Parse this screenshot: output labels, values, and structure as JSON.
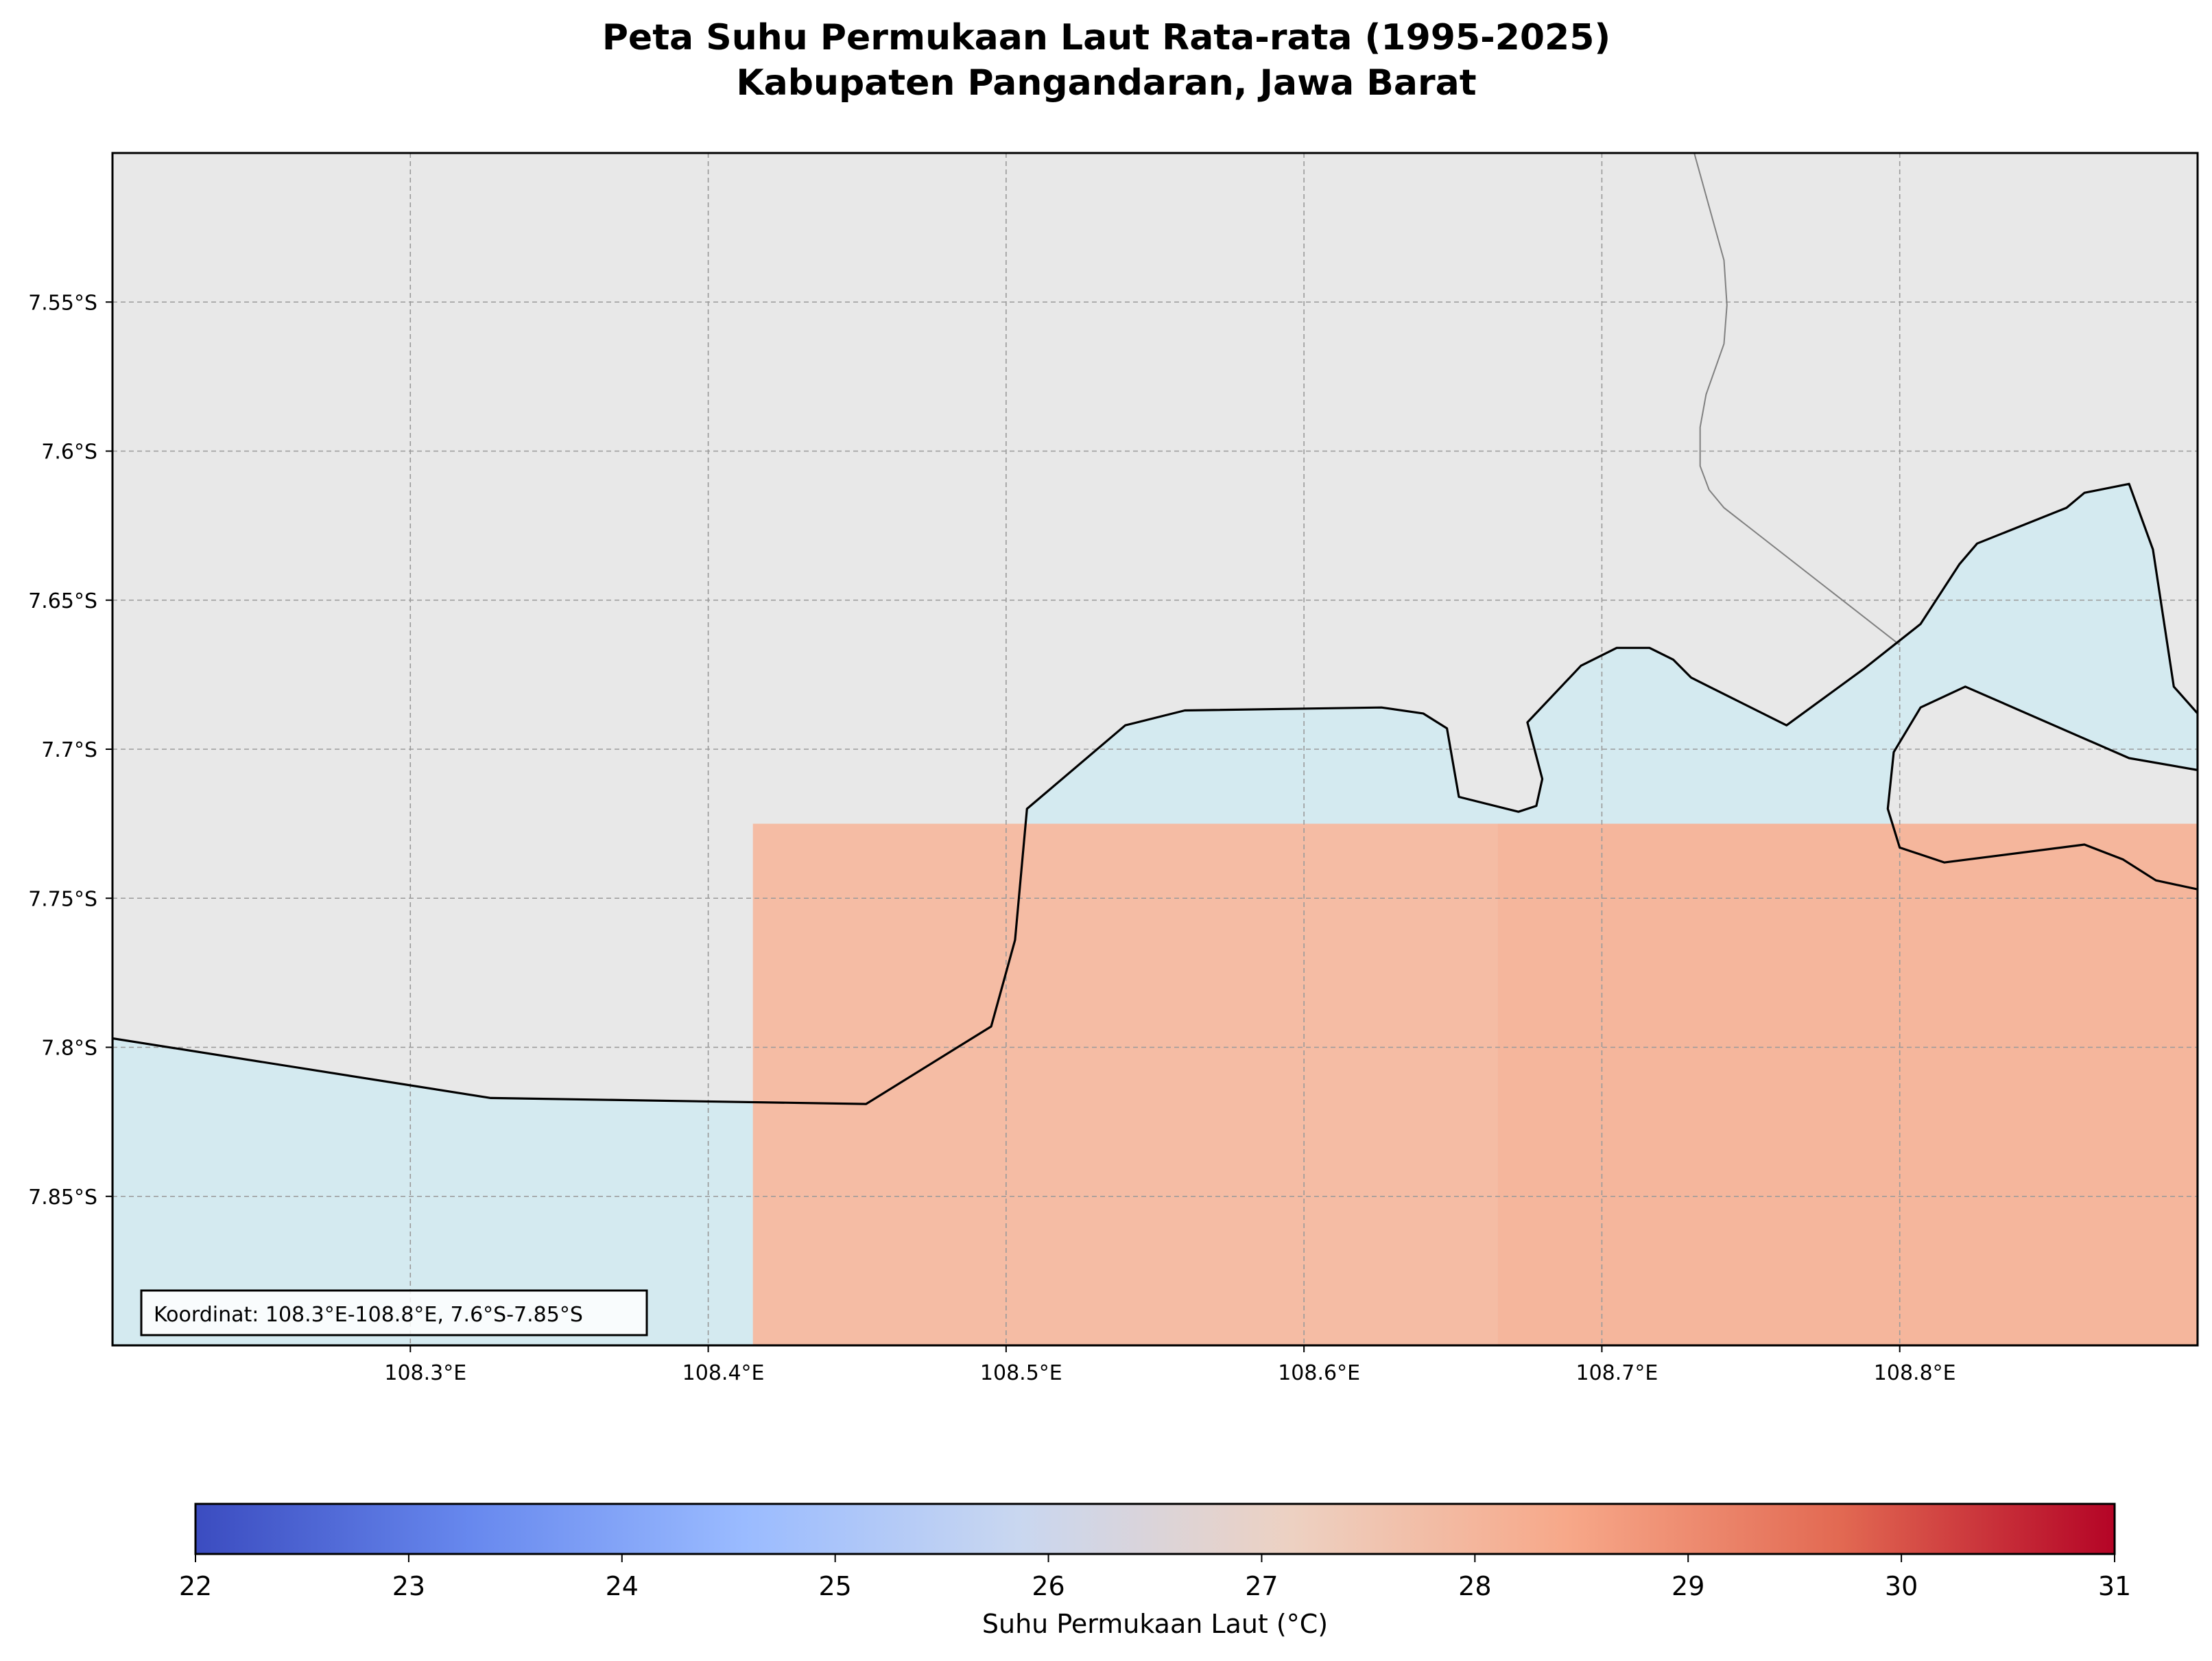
{
  "title": {
    "line1": "Peta Suhu Permukaan Laut Rata-rata (1995-2025)",
    "line2": "Kabupaten Pangandaran, Jawa Barat"
  },
  "axes": {
    "lon_range": [
      108.2,
      108.9
    ],
    "lat_range": [
      -7.9,
      -7.5
    ],
    "x_ticks": [
      {
        "value": 108.3,
        "label": "108.3°E"
      },
      {
        "value": 108.4,
        "label": "108.4°E"
      },
      {
        "value": 108.5,
        "label": "108.5°E"
      },
      {
        "value": 108.6,
        "label": "108.6°E"
      },
      {
        "value": 108.7,
        "label": "108.7°E"
      },
      {
        "value": 108.8,
        "label": "108.8°E"
      }
    ],
    "y_ticks": [
      {
        "value": -7.55,
        "label": "7.55°S"
      },
      {
        "value": -7.6,
        "label": "7.6°S"
      },
      {
        "value": -7.65,
        "label": "7.65°S"
      },
      {
        "value": -7.7,
        "label": "7.7°S"
      },
      {
        "value": -7.75,
        "label": "7.75°S"
      },
      {
        "value": -7.8,
        "label": "7.8°S"
      },
      {
        "value": -7.85,
        "label": "7.85°S"
      }
    ],
    "grid": true
  },
  "annotation": {
    "text": "Koordinat: 108.3°E-108.8°E, 7.6°S-7.85°S",
    "placement": "bottom-left"
  },
  "colors": {
    "land": "#e8e8e8",
    "water": "#d4eaf0",
    "sst_cell_west": "#f5bca4",
    "sst_cell_east": "#f5b69c",
    "coastline": "#000000",
    "boundary": "#808080"
  },
  "colorbar": {
    "label": "Suhu Permukaan Laut (°C)",
    "min": 22,
    "max": 31,
    "ticks": [
      "22",
      "23",
      "24",
      "25",
      "26",
      "27",
      "28",
      "29",
      "30",
      "31"
    ],
    "colormap": "coolwarm",
    "stops": [
      "#3b4cc0",
      "#6788ee",
      "#9abbff",
      "#c9d7f0",
      "#edd1c2",
      "#f7a889",
      "#e26952",
      "#b40426"
    ]
  },
  "chart_data": {
    "type": "heatmap",
    "x_unit": "degrees_east",
    "y_unit": "degrees_north",
    "cells": [
      {
        "lon_range": [
          108.415,
          108.665
        ],
        "lat_range": [
          -7.9,
          -7.725
        ],
        "value": 27.9
      },
      {
        "lon_range": [
          108.665,
          108.9
        ],
        "lat_range": [
          -7.9,
          -7.725
        ],
        "value": 28.1
      }
    ],
    "water_polygon": [
      [
        108.2,
        -7.797
      ],
      [
        108.327,
        -7.817
      ],
      [
        108.453,
        -7.819
      ],
      [
        108.495,
        -7.793
      ],
      [
        108.503,
        -7.764
      ],
      [
        108.507,
        -7.72
      ],
      [
        108.54,
        -7.692
      ],
      [
        108.56,
        -7.687
      ],
      [
        108.626,
        -7.686
      ],
      [
        108.64,
        -7.688
      ],
      [
        108.648,
        -7.693
      ],
      [
        108.652,
        -7.716
      ],
      [
        108.672,
        -7.721
      ],
      [
        108.678,
        -7.719
      ],
      [
        108.68,
        -7.71
      ],
      [
        108.675,
        -7.691
      ],
      [
        108.693,
        -7.672
      ],
      [
        108.705,
        -7.666
      ],
      [
        108.716,
        -7.666
      ],
      [
        108.724,
        -7.67
      ],
      [
        108.73,
        -7.676
      ],
      [
        108.736,
        -7.679
      ],
      [
        108.762,
        -7.692
      ],
      [
        108.788,
        -7.673
      ],
      [
        108.807,
        -7.658
      ],
      [
        108.82,
        -7.638
      ],
      [
        108.826,
        -7.631
      ],
      [
        108.856,
        -7.619
      ],
      [
        108.862,
        -7.614
      ],
      [
        108.877,
        -7.611
      ],
      [
        108.885,
        -7.633
      ],
      [
        108.892,
        -7.679
      ],
      [
        108.9,
        -7.688
      ],
      [
        108.9,
        -7.707
      ],
      [
        108.877,
        -7.703
      ],
      [
        108.822,
        -7.679
      ],
      [
        108.807,
        -7.686
      ],
      [
        108.798,
        -7.701
      ],
      [
        108.796,
        -7.72
      ],
      [
        108.8,
        -7.733
      ],
      [
        108.815,
        -7.738
      ],
      [
        108.862,
        -7.732
      ],
      [
        108.875,
        -7.737
      ],
      [
        108.886,
        -7.744
      ],
      [
        108.9,
        -7.747
      ],
      [
        108.9,
        -7.9
      ],
      [
        108.2,
        -7.9
      ]
    ],
    "boundary_line": [
      [
        108.731,
        -7.5
      ],
      [
        108.741,
        -7.536
      ],
      [
        108.742,
        -7.551
      ],
      [
        108.741,
        -7.564
      ],
      [
        108.735,
        -7.581
      ],
      [
        108.733,
        -7.592
      ],
      [
        108.733,
        -7.605
      ],
      [
        108.736,
        -7.613
      ],
      [
        108.741,
        -7.619
      ],
      [
        108.8,
        -7.665
      ]
    ]
  }
}
